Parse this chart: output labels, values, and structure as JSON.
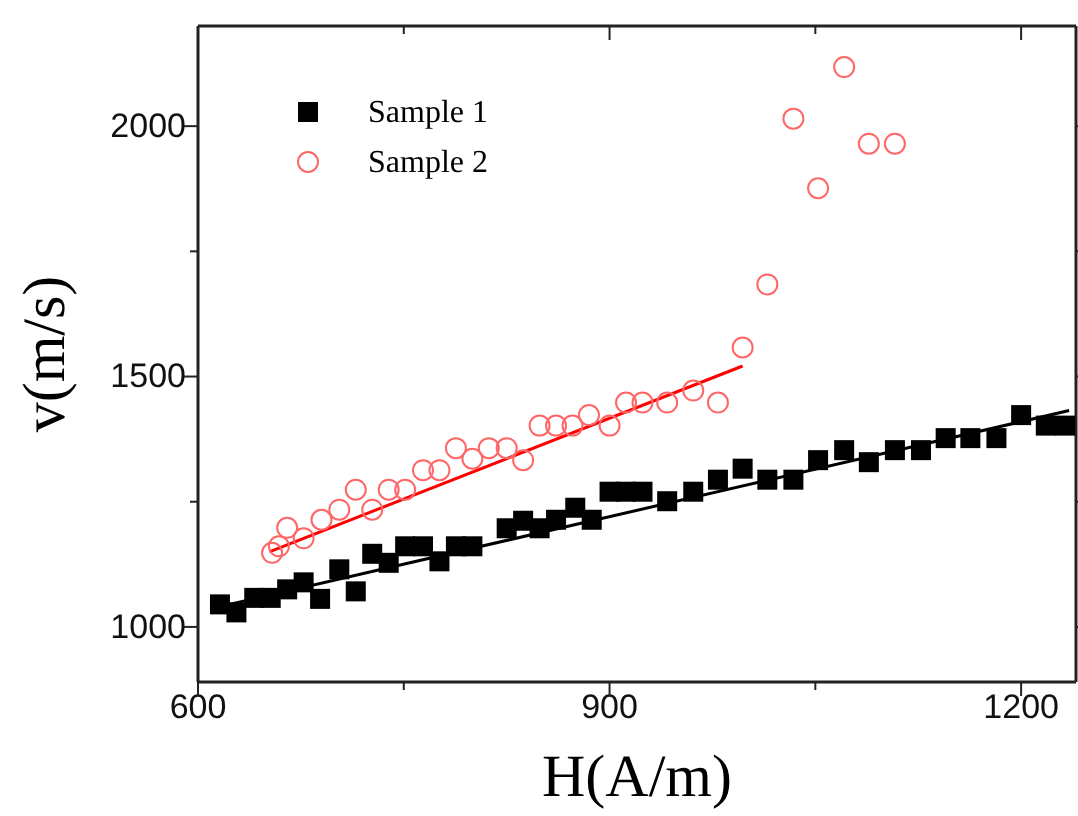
{
  "chart_data": {
    "type": "scatter",
    "xlabel": "H(A/m)",
    "ylabel": "v(m/s)",
    "xlim": [
      600,
      1240
    ],
    "ylim": [
      890,
      2200
    ],
    "xticks": [
      600,
      {
        "value": 750,
        "label": null
      },
      900,
      {
        "value": 1050,
        "label": null
      },
      1200
    ],
    "yticks": [
      1000,
      {
        "value": 1250,
        "label": null
      },
      1500,
      {
        "value": 1750,
        "label": null
      },
      2000
    ],
    "legend": "top left",
    "grid": false,
    "series": [
      {
        "name": "Sample 1",
        "color": "#000000",
        "marker": "square",
        "x": [
          616,
          628,
          641,
          653,
          665,
          677,
          689,
          703,
          715,
          727,
          739,
          751,
          764,
          776,
          788,
          800,
          825,
          837,
          849,
          861,
          875,
          887,
          900,
          912,
          924,
          942,
          961,
          979,
          997,
          1015,
          1034,
          1052,
          1071,
          1089,
          1108,
          1127,
          1145,
          1163,
          1182,
          1200,
          1218,
          1232
        ],
        "values": [
          1045,
          1029,
          1058,
          1058,
          1075,
          1089,
          1056,
          1115,
          1071,
          1146,
          1128,
          1161,
          1161,
          1131,
          1161,
          1161,
          1197,
          1212,
          1197,
          1214,
          1238,
          1214,
          1270,
          1270,
          1270,
          1251,
          1270,
          1294,
          1316,
          1294,
          1294,
          1333,
          1353,
          1329,
          1353,
          1353,
          1377,
          1377,
          1377,
          1423,
          1402,
          1402
        ]
      },
      {
        "name": "Sample 2",
        "color": "#ff6666",
        "marker": "circle",
        "x": [
          654,
          659,
          665,
          677,
          690,
          703,
          715,
          727,
          739,
          751,
          764,
          776,
          788,
          800,
          812,
          825,
          837,
          849,
          861,
          873,
          885,
          900,
          912,
          924,
          942,
          961,
          979,
          997,
          1015,
          1034,
          1052,
          1071,
          1089,
          1108
        ],
        "values": [
          1148,
          1161,
          1198,
          1177,
          1214,
          1234,
          1274,
          1234,
          1274,
          1274,
          1313,
          1313,
          1357,
          1336,
          1357,
          1357,
          1333,
          1402,
          1402,
          1402,
          1423,
          1402,
          1448,
          1448,
          1448,
          1472,
          1448,
          1558,
          1684,
          2015,
          1876,
          2118,
          1965,
          1965
        ]
      },
      {
        "type": "line",
        "color": "#000000",
        "marker": "none",
        "x": [
          615,
          1235
        ],
        "values": [
          1040,
          1432
        ]
      },
      {
        "type": "line",
        "color": "#ff0000",
        "marker": "none",
        "x": [
          652,
          997
        ],
        "values": [
          1150,
          1521
        ]
      }
    ]
  }
}
